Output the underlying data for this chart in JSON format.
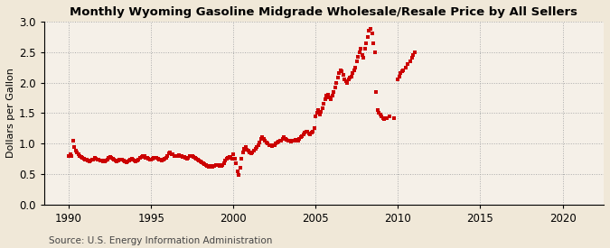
{
  "title": "Monthly Wyoming Gasoline Midgrade Wholesale/Resale Price by All Sellers",
  "ylabel": "Dollars per Gallon",
  "source": "Source: U.S. Energy Information Administration",
  "plot_bg_color": "#F5F0E8",
  "outer_bg_color": "#F0E8D8",
  "marker_color": "#CC0000",
  "xlim": [
    1988.5,
    2022.5
  ],
  "ylim": [
    0.0,
    3.0
  ],
  "xticks": [
    1990,
    1995,
    2000,
    2005,
    2010,
    2015,
    2020
  ],
  "yticks": [
    0.0,
    0.5,
    1.0,
    1.5,
    2.0,
    2.5,
    3.0
  ],
  "data": [
    [
      1990.0,
      0.8
    ],
    [
      1990.083,
      0.82
    ],
    [
      1990.167,
      0.8
    ],
    [
      1990.25,
      1.05
    ],
    [
      1990.333,
      0.95
    ],
    [
      1990.417,
      0.88
    ],
    [
      1990.5,
      0.85
    ],
    [
      1990.583,
      0.83
    ],
    [
      1990.667,
      0.8
    ],
    [
      1990.75,
      0.78
    ],
    [
      1990.833,
      0.76
    ],
    [
      1990.917,
      0.75
    ],
    [
      1991.0,
      0.74
    ],
    [
      1991.083,
      0.73
    ],
    [
      1991.167,
      0.72
    ],
    [
      1991.25,
      0.71
    ],
    [
      1991.333,
      0.72
    ],
    [
      1991.417,
      0.73
    ],
    [
      1991.5,
      0.74
    ],
    [
      1991.583,
      0.76
    ],
    [
      1991.667,
      0.75
    ],
    [
      1991.75,
      0.74
    ],
    [
      1991.833,
      0.73
    ],
    [
      1991.917,
      0.72
    ],
    [
      1992.0,
      0.72
    ],
    [
      1992.083,
      0.71
    ],
    [
      1992.167,
      0.7
    ],
    [
      1992.25,
      0.72
    ],
    [
      1992.333,
      0.74
    ],
    [
      1992.417,
      0.76
    ],
    [
      1992.5,
      0.78
    ],
    [
      1992.583,
      0.77
    ],
    [
      1992.667,
      0.75
    ],
    [
      1992.75,
      0.73
    ],
    [
      1992.833,
      0.72
    ],
    [
      1992.917,
      0.71
    ],
    [
      1993.0,
      0.72
    ],
    [
      1993.083,
      0.73
    ],
    [
      1993.167,
      0.74
    ],
    [
      1993.25,
      0.73
    ],
    [
      1993.333,
      0.72
    ],
    [
      1993.417,
      0.7
    ],
    [
      1993.5,
      0.69
    ],
    [
      1993.583,
      0.7
    ],
    [
      1993.667,
      0.72
    ],
    [
      1993.75,
      0.74
    ],
    [
      1993.833,
      0.75
    ],
    [
      1993.917,
      0.73
    ],
    [
      1994.0,
      0.72
    ],
    [
      1994.083,
      0.71
    ],
    [
      1994.167,
      0.72
    ],
    [
      1994.25,
      0.74
    ],
    [
      1994.333,
      0.76
    ],
    [
      1994.417,
      0.78
    ],
    [
      1994.5,
      0.8
    ],
    [
      1994.583,
      0.79
    ],
    [
      1994.667,
      0.77
    ],
    [
      1994.75,
      0.76
    ],
    [
      1994.833,
      0.75
    ],
    [
      1994.917,
      0.74
    ],
    [
      1995.0,
      0.74
    ],
    [
      1995.083,
      0.75
    ],
    [
      1995.167,
      0.76
    ],
    [
      1995.25,
      0.77
    ],
    [
      1995.333,
      0.76
    ],
    [
      1995.417,
      0.75
    ],
    [
      1995.5,
      0.74
    ],
    [
      1995.583,
      0.73
    ],
    [
      1995.667,
      0.72
    ],
    [
      1995.75,
      0.74
    ],
    [
      1995.833,
      0.75
    ],
    [
      1995.917,
      0.76
    ],
    [
      1996.0,
      0.8
    ],
    [
      1996.083,
      0.84
    ],
    [
      1996.167,
      0.85
    ],
    [
      1996.25,
      0.83
    ],
    [
      1996.333,
      0.82
    ],
    [
      1996.417,
      0.8
    ],
    [
      1996.5,
      0.79
    ],
    [
      1996.583,
      0.8
    ],
    [
      1996.667,
      0.81
    ],
    [
      1996.75,
      0.8
    ],
    [
      1996.833,
      0.79
    ],
    [
      1996.917,
      0.78
    ],
    [
      1997.0,
      0.78
    ],
    [
      1997.083,
      0.76
    ],
    [
      1997.167,
      0.75
    ],
    [
      1997.25,
      0.77
    ],
    [
      1997.333,
      0.79
    ],
    [
      1997.417,
      0.8
    ],
    [
      1997.5,
      0.79
    ],
    [
      1997.583,
      0.78
    ],
    [
      1997.667,
      0.76
    ],
    [
      1997.75,
      0.75
    ],
    [
      1997.833,
      0.73
    ],
    [
      1997.917,
      0.72
    ],
    [
      1998.0,
      0.71
    ],
    [
      1998.083,
      0.69
    ],
    [
      1998.167,
      0.67
    ],
    [
      1998.25,
      0.66
    ],
    [
      1998.333,
      0.64
    ],
    [
      1998.417,
      0.63
    ],
    [
      1998.5,
      0.62
    ],
    [
      1998.583,
      0.63
    ],
    [
      1998.667,
      0.63
    ],
    [
      1998.75,
      0.62
    ],
    [
      1998.833,
      0.63
    ],
    [
      1998.917,
      0.64
    ],
    [
      1999.0,
      0.65
    ],
    [
      1999.083,
      0.64
    ],
    [
      1999.167,
      0.63
    ],
    [
      1999.25,
      0.63
    ],
    [
      1999.333,
      0.64
    ],
    [
      1999.417,
      0.68
    ],
    [
      1999.5,
      0.72
    ],
    [
      1999.583,
      0.75
    ],
    [
      1999.667,
      0.77
    ],
    [
      1999.75,
      0.78
    ],
    [
      1999.833,
      0.76
    ],
    [
      1999.917,
      0.75
    ],
    [
      2000.0,
      0.82
    ],
    [
      2000.083,
      0.75
    ],
    [
      2000.167,
      0.68
    ],
    [
      2000.25,
      0.55
    ],
    [
      2000.333,
      0.48
    ],
    [
      2000.417,
      0.6
    ],
    [
      2000.5,
      0.75
    ],
    [
      2000.583,
      0.85
    ],
    [
      2000.667,
      0.92
    ],
    [
      2000.75,
      0.95
    ],
    [
      2000.833,
      0.9
    ],
    [
      2000.917,
      0.88
    ],
    [
      2001.0,
      0.86
    ],
    [
      2001.083,
      0.84
    ],
    [
      2001.167,
      0.85
    ],
    [
      2001.25,
      0.88
    ],
    [
      2001.333,
      0.92
    ],
    [
      2001.417,
      0.95
    ],
    [
      2001.5,
      0.98
    ],
    [
      2001.583,
      1.02
    ],
    [
      2001.667,
      1.08
    ],
    [
      2001.75,
      1.1
    ],
    [
      2001.833,
      1.08
    ],
    [
      2001.917,
      1.05
    ],
    [
      2002.0,
      1.02
    ],
    [
      2002.083,
      1.0
    ],
    [
      2002.167,
      0.98
    ],
    [
      2002.25,
      0.97
    ],
    [
      2002.333,
      0.96
    ],
    [
      2002.417,
      0.97
    ],
    [
      2002.5,
      0.98
    ],
    [
      2002.583,
      1.0
    ],
    [
      2002.667,
      1.02
    ],
    [
      2002.75,
      1.03
    ],
    [
      2002.833,
      1.05
    ],
    [
      2002.917,
      1.05
    ],
    [
      2003.0,
      1.07
    ],
    [
      2003.083,
      1.1
    ],
    [
      2003.167,
      1.08
    ],
    [
      2003.25,
      1.06
    ],
    [
      2003.333,
      1.05
    ],
    [
      2003.417,
      1.04
    ],
    [
      2003.5,
      1.03
    ],
    [
      2003.583,
      1.04
    ],
    [
      2003.667,
      1.05
    ],
    [
      2003.75,
      1.06
    ],
    [
      2003.833,
      1.05
    ],
    [
      2003.917,
      1.05
    ],
    [
      2004.0,
      1.08
    ],
    [
      2004.083,
      1.1
    ],
    [
      2004.167,
      1.12
    ],
    [
      2004.25,
      1.15
    ],
    [
      2004.333,
      1.18
    ],
    [
      2004.417,
      1.2
    ],
    [
      2004.5,
      1.19
    ],
    [
      2004.583,
      1.17
    ],
    [
      2004.667,
      1.15
    ],
    [
      2004.75,
      1.18
    ],
    [
      2004.833,
      1.2
    ],
    [
      2004.917,
      1.25
    ],
    [
      2005.0,
      1.45
    ],
    [
      2005.083,
      1.5
    ],
    [
      2005.167,
      1.55
    ],
    [
      2005.25,
      1.48
    ],
    [
      2005.333,
      1.52
    ],
    [
      2005.417,
      1.58
    ],
    [
      2005.5,
      1.65
    ],
    [
      2005.583,
      1.72
    ],
    [
      2005.667,
      1.78
    ],
    [
      2005.75,
      1.8
    ],
    [
      2005.833,
      1.75
    ],
    [
      2005.917,
      1.72
    ],
    [
      2006.0,
      1.78
    ],
    [
      2006.083,
      1.85
    ],
    [
      2006.167,
      1.92
    ],
    [
      2006.25,
      2.0
    ],
    [
      2006.333,
      2.08
    ],
    [
      2006.417,
      2.15
    ],
    [
      2006.5,
      2.2
    ],
    [
      2006.583,
      2.18
    ],
    [
      2006.667,
      2.12
    ],
    [
      2006.75,
      2.05
    ],
    [
      2006.833,
      2.02
    ],
    [
      2006.917,
      2.0
    ],
    [
      2007.0,
      2.05
    ],
    [
      2007.083,
      2.08
    ],
    [
      2007.167,
      2.1
    ],
    [
      2007.25,
      2.15
    ],
    [
      2007.333,
      2.2
    ],
    [
      2007.417,
      2.25
    ],
    [
      2007.5,
      2.35
    ],
    [
      2007.583,
      2.42
    ],
    [
      2007.667,
      2.5
    ],
    [
      2007.75,
      2.55
    ],
    [
      2007.833,
      2.45
    ],
    [
      2007.917,
      2.4
    ],
    [
      2008.0,
      2.55
    ],
    [
      2008.083,
      2.65
    ],
    [
      2008.167,
      2.75
    ],
    [
      2008.25,
      2.85
    ],
    [
      2008.333,
      2.88
    ],
    [
      2008.417,
      2.8
    ],
    [
      2008.5,
      2.65
    ],
    [
      2008.583,
      2.5
    ],
    [
      2008.667,
      1.85
    ],
    [
      2008.75,
      1.55
    ],
    [
      2008.833,
      1.5
    ],
    [
      2008.917,
      1.48
    ],
    [
      2009.0,
      1.45
    ],
    [
      2009.083,
      1.42
    ],
    [
      2009.167,
      1.4
    ],
    [
      2009.333,
      1.42
    ],
    [
      2009.5,
      1.45
    ],
    [
      2009.75,
      1.42
    ],
    [
      2010.0,
      2.05
    ],
    [
      2010.083,
      2.1
    ],
    [
      2010.167,
      2.15
    ],
    [
      2010.25,
      2.18
    ],
    [
      2010.333,
      2.2
    ],
    [
      2010.5,
      2.25
    ],
    [
      2010.583,
      2.3
    ],
    [
      2010.75,
      2.35
    ],
    [
      2010.833,
      2.4
    ],
    [
      2010.917,
      2.45
    ],
    [
      2011.0,
      2.5
    ]
  ]
}
